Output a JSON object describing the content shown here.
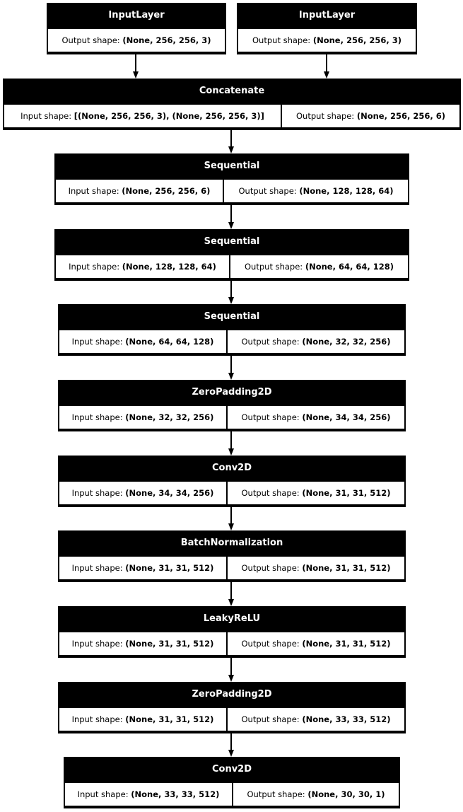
{
  "layers": [
    {
      "name": "InputLayer",
      "cells": [
        {
          "label": "Output shape: ",
          "value": "(None, 256, 256, 3)"
        }
      ]
    },
    {
      "name": "InputLayer",
      "cells": [
        {
          "label": "Output shape: ",
          "value": "(None, 256, 256, 3)"
        }
      ]
    },
    {
      "name": "Concatenate",
      "cells": [
        {
          "label": "Input shape: ",
          "value": "[(None, 256, 256, 3), (None, 256, 256, 3)]"
        },
        {
          "label": "Output shape: ",
          "value": "(None, 256, 256, 6)"
        }
      ]
    },
    {
      "name": "Sequential",
      "cells": [
        {
          "label": "Input shape: ",
          "value": "(None, 256, 256, 6)"
        },
        {
          "label": "Output shape: ",
          "value": "(None, 128, 128, 64)"
        }
      ]
    },
    {
      "name": "Sequential",
      "cells": [
        {
          "label": "Input shape: ",
          "value": "(None, 128, 128, 64)"
        },
        {
          "label": "Output shape: ",
          "value": "(None, 64, 64, 128)"
        }
      ]
    },
    {
      "name": "Sequential",
      "cells": [
        {
          "label": "Input shape: ",
          "value": "(None, 64, 64, 128)"
        },
        {
          "label": "Output shape: ",
          "value": "(None, 32, 32, 256)"
        }
      ]
    },
    {
      "name": "ZeroPadding2D",
      "cells": [
        {
          "label": "Input shape: ",
          "value": "(None, 32, 32, 256)"
        },
        {
          "label": "Output shape: ",
          "value": "(None, 34, 34, 256)"
        }
      ]
    },
    {
      "name": "Conv2D",
      "cells": [
        {
          "label": "Input shape: ",
          "value": "(None, 34, 34, 256)"
        },
        {
          "label": "Output shape: ",
          "value": "(None, 31, 31, 512)"
        }
      ]
    },
    {
      "name": "BatchNormalization",
      "cells": [
        {
          "label": "Input shape: ",
          "value": "(None, 31, 31, 512)"
        },
        {
          "label": "Output shape: ",
          "value": "(None, 31, 31, 512)"
        }
      ]
    },
    {
      "name": "LeakyReLU",
      "cells": [
        {
          "label": "Input shape: ",
          "value": "(None, 31, 31, 512)"
        },
        {
          "label": "Output shape: ",
          "value": "(None, 31, 31, 512)"
        }
      ]
    },
    {
      "name": "ZeroPadding2D",
      "cells": [
        {
          "label": "Input shape: ",
          "value": "(None, 31, 31, 512)"
        },
        {
          "label": "Output shape: ",
          "value": "(None, 33, 33, 512)"
        }
      ]
    },
    {
      "name": "Conv2D",
      "cells": [
        {
          "label": "Input shape: ",
          "value": "(None, 33, 33, 512)"
        },
        {
          "label": "Output shape: ",
          "value": "(None, 30, 30, 1)"
        }
      ]
    }
  ],
  "edges": [
    [
      0,
      2
    ],
    [
      1,
      2
    ],
    [
      2,
      3
    ],
    [
      3,
      4
    ],
    [
      4,
      5
    ],
    [
      5,
      6
    ],
    [
      6,
      7
    ],
    [
      7,
      8
    ],
    [
      8,
      9
    ],
    [
      9,
      10
    ],
    [
      10,
      11
    ]
  ]
}
